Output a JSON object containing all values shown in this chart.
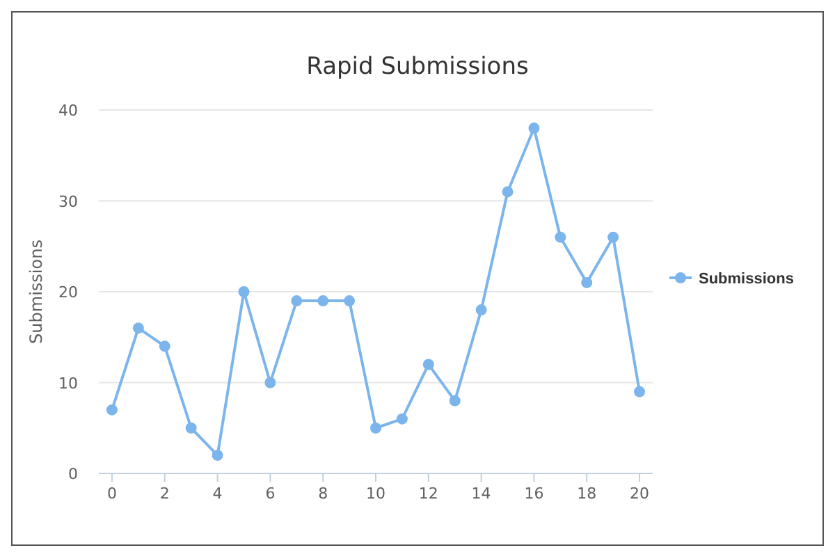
{
  "chart_data": {
    "type": "line",
    "title": "Rapid Submissions",
    "ylabel": "Submissions",
    "x": [
      0,
      1,
      2,
      3,
      4,
      5,
      6,
      7,
      8,
      9,
      10,
      11,
      12,
      13,
      14,
      15,
      16,
      17,
      18,
      19,
      20
    ],
    "series": [
      {
        "name": "Submissions",
        "color": "#7cb5ec",
        "values": [
          7,
          16,
          14,
          5,
          2,
          20,
          10,
          19,
          19,
          19,
          5,
          6,
          12,
          8,
          18,
          31,
          38,
          26,
          21,
          26,
          9
        ]
      }
    ],
    "xlim": [
      -0.5,
      20.5
    ],
    "xticks": [
      0,
      2,
      4,
      6,
      8,
      10,
      12,
      14,
      16,
      18,
      20
    ],
    "ylim": [
      0,
      40
    ],
    "yticks": [
      0,
      10,
      20,
      30,
      40
    ],
    "grid": "y",
    "legend": "right",
    "marker": "circle",
    "line_style": "solid"
  }
}
